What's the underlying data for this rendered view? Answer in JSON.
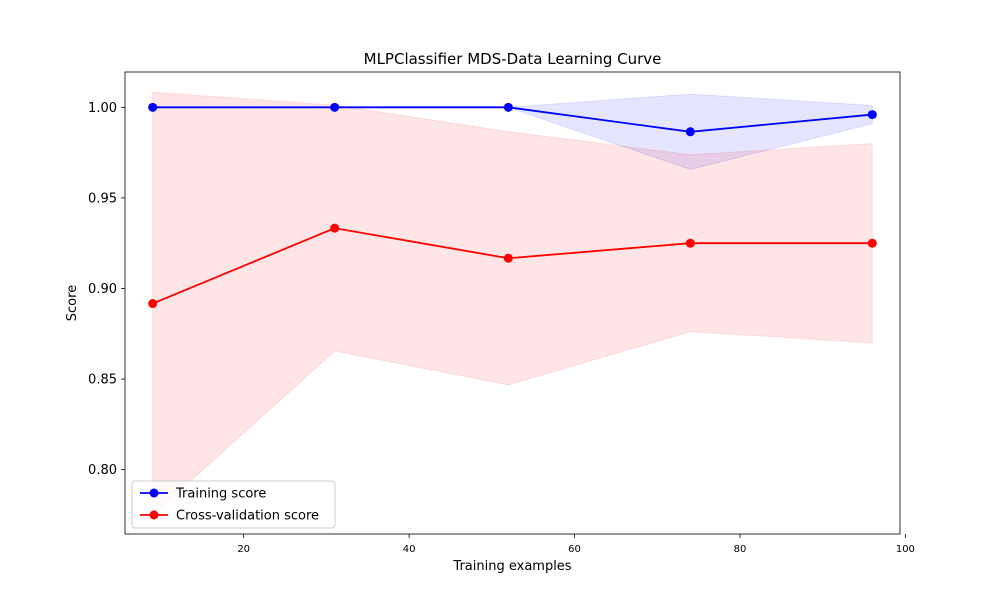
{
  "chart_data": {
    "type": "line",
    "title": "MLPClassifier MDS-Data Learning Curve",
    "xlabel": "Training examples",
    "ylabel": "Score",
    "xlim": [
      5.65,
      99.35
    ],
    "ylim": [
      0.7645,
      1.0195
    ],
    "x_ticks": [
      20,
      40,
      60,
      80,
      100
    ],
    "x_tick_labels": [
      "20",
      "40",
      "60",
      "80",
      "100"
    ],
    "y_ticks": [
      0.8,
      0.85,
      0.9,
      0.95,
      1.0
    ],
    "y_tick_labels": [
      "0.80",
      "0.85",
      "0.90",
      "0.95",
      "1.00"
    ],
    "grid": false,
    "legend_position": "lower-left",
    "x": [
      9,
      31,
      52,
      74,
      96
    ],
    "series": [
      {
        "name": "Training score",
        "color": "#0000ff",
        "marker": "circle",
        "values": [
          1.0,
          1.0,
          1.0,
          0.9865,
          0.996
        ],
        "band_upper": [
          1.0,
          1.0,
          1.0,
          1.0073,
          1.001
        ],
        "band_lower": [
          1.0,
          1.0,
          1.0,
          0.9657,
          0.991
        ]
      },
      {
        "name": "Cross-validation score",
        "color": "#ff0000",
        "marker": "circle",
        "values": [
          0.8917,
          0.9333,
          0.9167,
          0.925,
          0.925
        ],
        "band_upper": [
          1.0083,
          1.0012,
          0.9865,
          0.9738,
          0.98
        ],
        "band_lower": [
          0.775,
          0.8655,
          0.8468,
          0.8762,
          0.87
        ]
      }
    ]
  }
}
